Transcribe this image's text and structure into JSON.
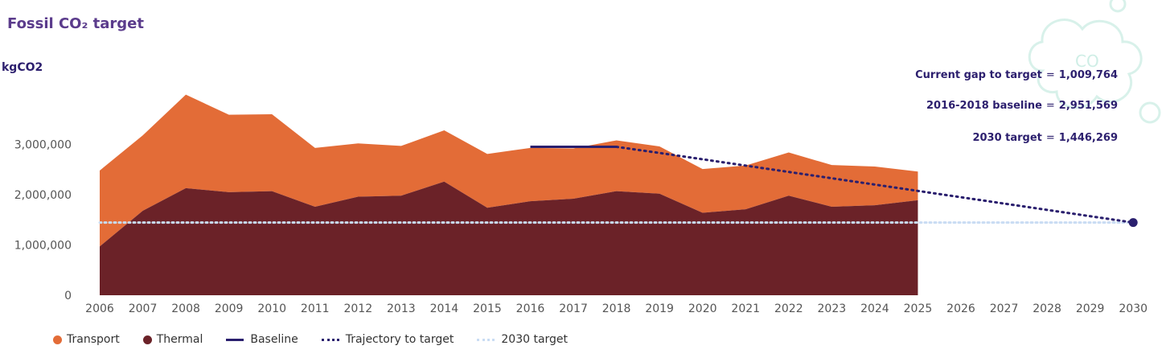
{
  "title": "Fossil CO₂ target",
  "unit": "kgCO2",
  "stats": [
    {
      "label": "Current gap to target",
      "value": "1,009,764"
    },
    {
      "label": "2016-2018 baseline",
      "value": "2,951,569"
    },
    {
      "label": "2030 target",
      "value": "1,446,269"
    }
  ],
  "colors": {
    "transport": "#e36c37",
    "thermal": "#6b2228",
    "baseline": "#2a1f6e",
    "trajectory": "#2a1f6e",
    "target": "#c9dcf3",
    "axis_text": "#555555"
  },
  "chart_data": {
    "type": "area",
    "x": [
      2006,
      2007,
      2008,
      2009,
      2010,
      2011,
      2012,
      2013,
      2014,
      2015,
      2016,
      2017,
      2018,
      2019,
      2020,
      2021,
      2022,
      2023,
      2024,
      2025,
      2026,
      2027,
      2028,
      2029,
      2030
    ],
    "series": [
      {
        "name": "Thermal",
        "x": [
          2006,
          2007,
          2008,
          2009,
          2010,
          2011,
          2012,
          2013,
          2014,
          2015,
          2016,
          2017,
          2018,
          2019,
          2020,
          2021,
          2022,
          2023,
          2024,
          2025
        ],
        "values": [
          970000,
          1680000,
          2130000,
          2050000,
          2070000,
          1760000,
          1960000,
          1980000,
          2260000,
          1740000,
          1870000,
          1920000,
          2070000,
          2020000,
          1640000,
          1710000,
          1980000,
          1760000,
          1790000,
          1890000
        ]
      },
      {
        "name": "Transport",
        "x": [
          2006,
          2007,
          2008,
          2009,
          2010,
          2011,
          2012,
          2013,
          2014,
          2015,
          2016,
          2017,
          2018,
          2019,
          2020,
          2021,
          2022,
          2023,
          2024,
          2025
        ],
        "values": [
          1510000,
          1500000,
          1860000,
          1540000,
          1530000,
          1170000,
          1060000,
          990000,
          1020000,
          1070000,
          1060000,
          1000000,
          1010000,
          940000,
          870000,
          870000,
          860000,
          830000,
          770000,
          570000
        ]
      },
      {
        "name": "Baseline",
        "x": [
          2016,
          2018
        ],
        "values": [
          2951569,
          2951569
        ]
      },
      {
        "name": "Trajectory to target",
        "x": [
          2018,
          2019,
          2030
        ],
        "values": [
          2951569,
          2830000,
          1446269
        ]
      },
      {
        "name": "2030 target",
        "x": [
          2006,
          2030
        ],
        "values": [
          1446269,
          1446269
        ]
      }
    ],
    "y_ticks": [
      0,
      1000000,
      2000000,
      3000000
    ],
    "y_tick_labels": [
      "0",
      "1,000,000",
      "2,000,000",
      "3,000,000"
    ],
    "ylim": [
      0,
      3900000
    ],
    "xlim": [
      2006,
      2030
    ],
    "legend": [
      {
        "label": "Transport",
        "kind": "dot"
      },
      {
        "label": "Thermal",
        "kind": "dot"
      },
      {
        "label": "Baseline",
        "kind": "line"
      },
      {
        "label": "Trajectory to target",
        "kind": "dotted"
      },
      {
        "label": "2030 target",
        "kind": "light-dotted"
      }
    ],
    "legend_position": "bottom-left",
    "grid": false
  }
}
